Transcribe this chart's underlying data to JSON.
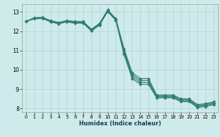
{
  "xlabel": "Humidex (Indice chaleur)",
  "bg_color": "#ceeaea",
  "grid_color": "#b8d8d8",
  "line_color": "#2e7d72",
  "xlim": [
    -0.5,
    23.5
  ],
  "ylim": [
    7.8,
    13.4
  ],
  "yticks": [
    8,
    9,
    10,
    11,
    12,
    13
  ],
  "xticks": [
    0,
    1,
    2,
    3,
    4,
    5,
    6,
    7,
    8,
    9,
    10,
    11,
    12,
    13,
    14,
    15,
    16,
    17,
    18,
    19,
    20,
    21,
    22,
    23
  ],
  "series": [
    {
      "x": [
        0,
        1,
        2,
        3,
        4,
        5,
        6,
        7,
        8,
        9,
        10,
        11,
        12,
        13,
        14,
        15,
        16,
        17,
        18,
        19,
        20,
        21,
        22,
        23
      ],
      "y": [
        12.5,
        12.7,
        12.72,
        12.55,
        12.45,
        12.55,
        12.5,
        12.5,
        12.1,
        12.4,
        13.1,
        12.65,
        11.1,
        9.85,
        9.55,
        9.55,
        8.7,
        8.7,
        8.7,
        8.5,
        8.5,
        8.2,
        8.25,
        8.35
      ]
    },
    {
      "x": [
        0,
        1,
        2,
        3,
        4,
        5,
        6,
        7,
        8,
        9,
        10,
        11,
        12,
        13,
        14,
        15,
        16,
        17,
        18,
        19,
        20,
        21,
        22,
        23
      ],
      "y": [
        12.5,
        12.68,
        12.7,
        12.52,
        12.42,
        12.52,
        12.47,
        12.47,
        12.07,
        12.37,
        13.07,
        12.62,
        11.0,
        9.75,
        9.45,
        9.45,
        8.65,
        8.65,
        8.65,
        8.45,
        8.45,
        8.15,
        8.2,
        8.3
      ]
    },
    {
      "x": [
        0,
        1,
        2,
        3,
        4,
        5,
        6,
        7,
        8,
        9,
        10,
        11,
        12,
        13,
        14,
        15,
        16,
        17,
        18,
        19,
        20,
        21,
        22,
        23
      ],
      "y": [
        12.5,
        12.66,
        12.68,
        12.5,
        12.4,
        12.5,
        12.44,
        12.44,
        12.04,
        12.34,
        13.04,
        12.59,
        10.9,
        9.65,
        9.35,
        9.35,
        8.6,
        8.6,
        8.6,
        8.4,
        8.4,
        8.1,
        8.15,
        8.25
      ]
    },
    {
      "x": [
        0,
        1,
        2,
        3,
        4,
        5,
        6,
        7,
        8,
        9,
        10,
        11,
        12,
        13,
        14,
        15,
        16,
        17,
        18,
        19,
        20,
        21,
        22,
        23
      ],
      "y": [
        12.5,
        12.64,
        12.66,
        12.48,
        12.38,
        12.48,
        12.41,
        12.41,
        12.01,
        12.31,
        13.01,
        12.56,
        10.8,
        9.55,
        9.25,
        9.25,
        8.55,
        8.55,
        8.55,
        8.35,
        8.35,
        8.05,
        8.1,
        8.2
      ]
    }
  ]
}
